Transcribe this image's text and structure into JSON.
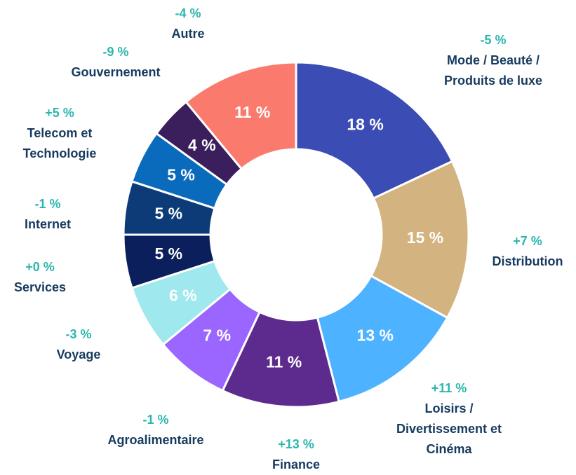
{
  "chart_data": {
    "type": "donut",
    "categories": [
      "Mode / Beauté / Produits de luxe",
      "Distribution",
      "Loisirs / Divertissement et Cinéma",
      "Finance",
      "Agroalimentaire",
      "Voyage",
      "Services",
      "Internet",
      "Telecom et Technologie",
      "Gouvernement",
      "Autre"
    ],
    "values": [
      18,
      15,
      13,
      11,
      7,
      6,
      5,
      5,
      5,
      4,
      11
    ],
    "value_labels": [
      "18 %",
      "15 %",
      "13 %",
      "11 %",
      "7 %",
      "6 %",
      "5 %",
      "5 %",
      "5 %",
      "4 %",
      "11 %"
    ],
    "changes": [
      -5,
      7,
      11,
      13,
      -1,
      -3,
      0,
      -1,
      5,
      -9,
      -4
    ],
    "change_labels": [
      "-5 %",
      "+7 %",
      "+11 %",
      "+13 %",
      "-1 %",
      "-3 %",
      "+0 %",
      "-1 %",
      "+5 %",
      "-9 %",
      "-4 %"
    ],
    "colors": [
      "#3b4cb4",
      "#d3b37f",
      "#4db2ff",
      "#5d2b8e",
      "#9a66ff",
      "#9fe8ee",
      "#0a1f5b",
      "#0c3b78",
      "#0a6bbd",
      "#3b1f5c",
      "#fa7b6d"
    ]
  }
}
